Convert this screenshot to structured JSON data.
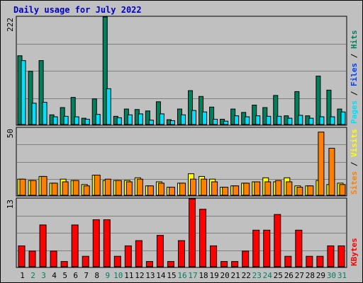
{
  "title": "Daily usage for July 2022",
  "chart_data": [
    {
      "type": "bar",
      "name": "hits-files-pages",
      "ymax_label": "222",
      "ylim": [
        0,
        222
      ],
      "right_labels": [
        "Pages",
        "Files",
        "Hits"
      ],
      "colors": {
        "hits": "#00805c",
        "files": "#0040ff",
        "pages": "#00e0ff"
      },
      "series": [
        {
          "name": "Hits",
          "values": [
            142,
            110,
            132,
            20,
            35,
            56,
            13,
            53,
            222,
            17,
            32,
            31,
            28,
            47,
            10,
            32,
            70,
            58,
            36,
            11,
            32,
            25,
            40,
            35,
            60,
            18,
            68,
            18,
            100,
            71,
            32
          ]
        },
        {
          "name": "Pages",
          "values": [
            132,
            44,
            46,
            16,
            17,
            16,
            11,
            21,
            74,
            14,
            20,
            22,
            9,
            22,
            8,
            20,
            29,
            26,
            11,
            7,
            18,
            16,
            18,
            17,
            17,
            13,
            19,
            13,
            16,
            16,
            26
          ]
        }
      ]
    },
    {
      "type": "bar",
      "name": "visits-sites",
      "ymax_label": "50",
      "ylim": [
        0,
        50
      ],
      "right_labels": [
        "Sites",
        "Visits"
      ],
      "colors": {
        "visits": "#ffff00",
        "sites": "#ff8000"
      },
      "series": [
        {
          "name": "Visits",
          "values": [
            12,
            11,
            14,
            9,
            12,
            11,
            8,
            15,
            11,
            11,
            11,
            13,
            7,
            10,
            6,
            9,
            16,
            14,
            12,
            6,
            7,
            9,
            10,
            13,
            10,
            13,
            7,
            7,
            11,
            8,
            9
          ]
        },
        {
          "name": "Sites",
          "values": [
            12,
            11,
            14,
            9,
            10,
            11,
            7,
            15,
            12,
            11,
            10,
            12,
            7,
            9,
            6,
            9,
            12,
            12,
            10,
            6,
            7,
            9,
            10,
            10,
            11,
            10,
            6,
            7,
            47,
            35,
            8
          ]
        }
      ]
    },
    {
      "type": "bar",
      "name": "kbytes",
      "ymax_label": "13",
      "ylim": [
        0,
        13
      ],
      "right_labels": [
        "KBytes"
      ],
      "colors": {
        "kbytes": "#ff0000"
      },
      "series": [
        {
          "name": "KBytes",
          "values": [
            4,
            3,
            8,
            3,
            1,
            8,
            2,
            9,
            9,
            2,
            4,
            5,
            1,
            6,
            1,
            5,
            13,
            11,
            4,
            1,
            1,
            3,
            7,
            7,
            10,
            2,
            7,
            2,
            2,
            4,
            4
          ]
        }
      ]
    }
  ],
  "x_labels": [
    "1",
    "2",
    "3",
    "4",
    "5",
    "6",
    "7",
    "8",
    "9",
    "10",
    "11",
    "12",
    "13",
    "14",
    "15",
    "16",
    "17",
    "18",
    "19",
    "20",
    "21",
    "22",
    "23",
    "24",
    "25",
    "26",
    "27",
    "28",
    "29",
    "30",
    "31"
  ],
  "weekend_days": [
    2,
    3,
    9,
    10,
    16,
    17,
    23,
    24,
    30,
    31
  ],
  "colors": {
    "weekday_label": "#000000",
    "weekend_label": "#00805c",
    "title": "#0000c0"
  }
}
